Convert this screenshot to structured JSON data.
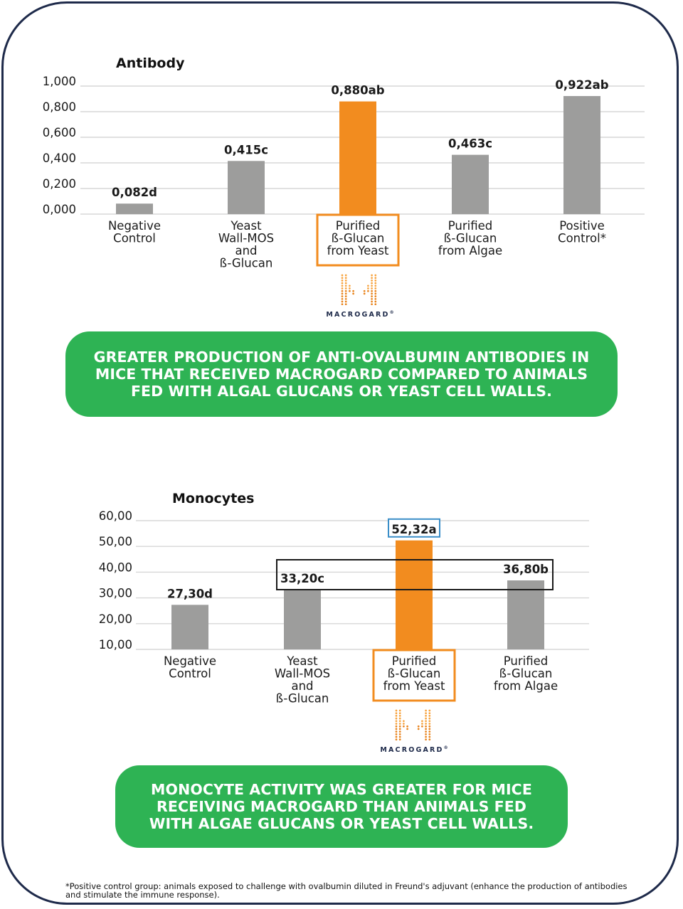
{
  "colors": {
    "gray_bar": "#9d9d9c",
    "orange_bar": "#f28c1f",
    "green_callout": "#2eb354",
    "frame": "#1e2a4a",
    "blue_highlight": "#3a8ec8",
    "grid": "#d7d7d7"
  },
  "chart_data": [
    {
      "type": "bar",
      "title": "Antibody",
      "categories": [
        [
          "Negative",
          "Control"
        ],
        [
          "Yeast",
          "Wall-MOS",
          "and",
          "ß-Glucan"
        ],
        [
          "Purified",
          "ß-Glucan",
          "from Yeast"
        ],
        [
          "Purified",
          "ß-Glucan",
          "from Algae"
        ],
        [
          "Positive",
          "Control*"
        ]
      ],
      "values": [
        0.082,
        0.415,
        0.88,
        0.463,
        0.922
      ],
      "value_labels": [
        "0,082d",
        "0,415c",
        "0,880ab",
        "0,463c",
        "0,922ab"
      ],
      "highlight_index": 2,
      "yticks": [
        "0,000",
        "0,200",
        "0,400",
        "0,600",
        "0,800",
        "1,000"
      ],
      "ylim": [
        0,
        1.0
      ],
      "grid": true
    },
    {
      "type": "bar",
      "title": "Monocytes",
      "categories": [
        [
          "Negative",
          "Control"
        ],
        [
          "Yeast",
          "Wall-MOS",
          "and",
          "ß-Glucan"
        ],
        [
          "Purified",
          "ß-Glucan",
          "from Yeast"
        ],
        [
          "Purified",
          "ß-Glucan",
          "from Algae"
        ]
      ],
      "values": [
        27.3,
        33.2,
        52.32,
        36.8
      ],
      "value_labels": [
        "27,30d",
        "33,20c",
        "52,32a",
        "36,80b"
      ],
      "highlight_index": 2,
      "yticks": [
        "10,00",
        "20,00",
        "30,00",
        "40,00",
        "50,00",
        "60,00"
      ],
      "ylim": [
        10,
        60
      ],
      "grid": true
    }
  ],
  "logo": {
    "name": "MACROGARD",
    "mark": "®"
  },
  "callouts": [
    "GREATER PRODUCTION OF ANTI-OVALBUMIN ANTIBODIES IN MICE THAT RECEIVED MACROGARD COMPARED TO ANIMALS FED WITH ALGAL GLUCANS OR  YEAST CELL WALLS.",
    "MONOCYTE ACTIVITY WAS GREATER FOR MICE RECEIVING MACROGARD THAN ANIMALS FED WITH ALGAE GLUCANS OR YEAST CELL WALLS."
  ],
  "footnote": "*Positive control group: animals exposed to challenge with ovalbumin diluted in Freund's adjuvant (enhance the production of antibodies and stimulate the immune response)."
}
